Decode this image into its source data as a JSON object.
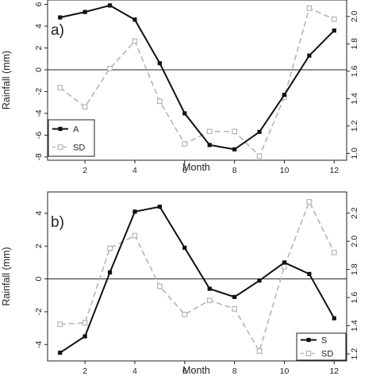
{
  "chart_data": [
    {
      "type": "line",
      "panel_label": "a)",
      "xlabel": "Month",
      "ylabel": "Rainfall (mm)",
      "x": [
        1,
        2,
        3,
        4,
        5,
        6,
        7,
        8,
        9,
        10,
        11,
        12
      ],
      "xticks": [
        2,
        4,
        6,
        8,
        10,
        12
      ],
      "xlim": [
        0.5,
        12.5
      ],
      "ylim": [
        -8.3,
        6.4
      ],
      "yticks": [
        -8,
        -6,
        -4,
        -2,
        0,
        2,
        4,
        6
      ],
      "y2lim": [
        0.95,
        2.12
      ],
      "y2ticks": [
        1.0,
        1.2,
        1.4,
        1.6,
        1.8,
        2.0
      ],
      "hline": 0,
      "legend_position": "bottom-left",
      "series": [
        {
          "name": "A",
          "axis": "left",
          "color": "#111111",
          "style": "solid",
          "marker": "filled-square",
          "values": [
            4.8,
            5.3,
            5.9,
            4.6,
            0.6,
            -4.0,
            -6.9,
            -7.3,
            -5.7,
            -2.3,
            1.3,
            3.6
          ]
        },
        {
          "name": "SD",
          "axis": "right",
          "color": "#b5b5b5",
          "style": "dashed",
          "marker": "open-square",
          "values": [
            1.48,
            1.34,
            1.62,
            1.82,
            1.38,
            1.07,
            1.16,
            1.16,
            0.98,
            1.41,
            2.06,
            1.98
          ]
        }
      ]
    },
    {
      "type": "line",
      "panel_label": "b)",
      "xlabel": "Month",
      "ylabel": "Rainfall (mm)",
      "x": [
        1,
        2,
        3,
        4,
        5,
        6,
        7,
        8,
        9,
        10,
        11,
        12
      ],
      "xticks": [
        2,
        4,
        6,
        8,
        10,
        12
      ],
      "xlim": [
        0.5,
        12.5
      ],
      "ylim": [
        -5.0,
        5.3
      ],
      "yticks": [
        -4,
        -2,
        0,
        2,
        4
      ],
      "y2lim": [
        1.15,
        2.35
      ],
      "y2ticks": [
        1.2,
        1.4,
        1.6,
        1.8,
        2.0,
        2.2
      ],
      "hline": 0,
      "legend_position": "bottom-right",
      "series": [
        {
          "name": "S",
          "axis": "left",
          "color": "#111111",
          "style": "solid",
          "marker": "filled-square",
          "values": [
            -4.5,
            -3.5,
            0.4,
            4.1,
            4.4,
            1.9,
            -0.6,
            -1.1,
            -0.1,
            1.0,
            0.3,
            -2.4
          ]
        },
        {
          "name": "SD",
          "axis": "right",
          "color": "#b5b5b5",
          "style": "dashed",
          "marker": "open-square",
          "values": [
            1.41,
            1.42,
            1.95,
            2.04,
            1.68,
            1.48,
            1.58,
            1.52,
            1.22,
            1.82,
            2.28,
            1.92
          ]
        }
      ]
    }
  ]
}
